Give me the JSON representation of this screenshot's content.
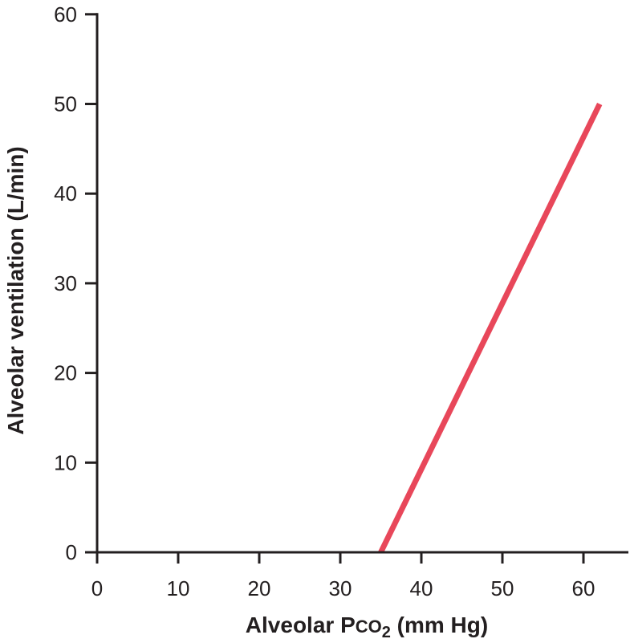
{
  "chart_data": {
    "type": "line",
    "title": "",
    "xlabel": {
      "prefix": "Alveolar P",
      "small_caps": "CO",
      "subscript": "2",
      "suffix": " (mm Hg)"
    },
    "ylabel": "Alveolar ventilation (L/min)",
    "xlim": [
      0,
      65
    ],
    "ylim": [
      0,
      60
    ],
    "xticks": [
      0,
      10,
      20,
      30,
      40,
      50,
      60
    ],
    "yticks": [
      0,
      10,
      20,
      30,
      40,
      50,
      60
    ],
    "grid": false,
    "colors": {
      "axis": "#231f20",
      "line": "#e8475a"
    },
    "series": [
      {
        "x": [
          35,
          62
        ],
        "y": [
          0,
          50
        ]
      }
    ]
  }
}
